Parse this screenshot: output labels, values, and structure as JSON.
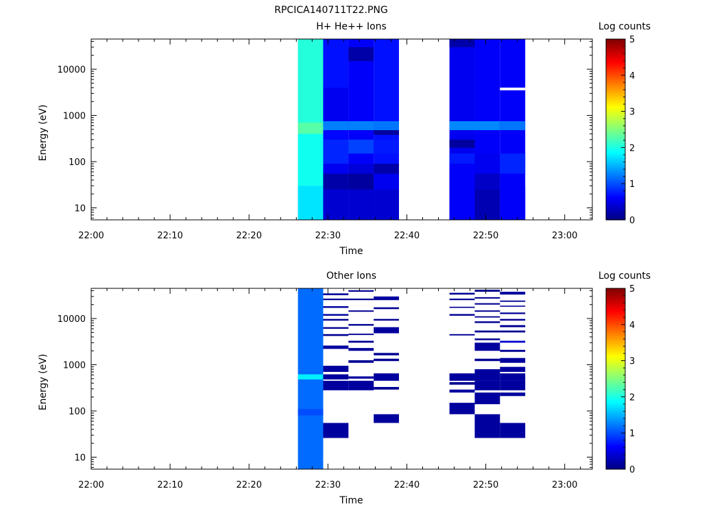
{
  "figure_title": "RPCICA140711T22.PNG",
  "colormap": [
    "#00007f",
    "#0000ff",
    "#007fff",
    "#00ffff",
    "#7fff7f",
    "#ffff00",
    "#ff7f00",
    "#ff0000",
    "#7f0000"
  ],
  "chart_data": [
    {
      "type": "heatmap",
      "title": "H+ He++ Ions",
      "xlabel": "Time",
      "ylabel": "Energy (eV)",
      "x_ticks": [
        "22:00",
        "22:10",
        "22:20",
        "22:30",
        "22:40",
        "22:50",
        "23:00"
      ],
      "x_range": [
        "22:00",
        "23:03.5"
      ],
      "y_ticks": [
        "10",
        "100",
        "1000",
        "10000"
      ],
      "y_range": [
        5.5,
        45000
      ],
      "y_scale": "log",
      "colorbar": {
        "label": "Log counts",
        "ticks": [
          "0",
          "1",
          "2",
          "3",
          "4",
          "5"
        ],
        "range": [
          0,
          5
        ]
      },
      "columns": [
        {
          "start": "22:26.2",
          "end": "22:29.4",
          "base": 2.0,
          "bands": [
            {
              "e": [
                5.5,
                30
              ],
              "v": 1.75
            },
            {
              "e": [
                30,
                400
              ],
              "v": 1.95
            },
            {
              "e": [
                400,
                700
              ],
              "v": 2.3
            },
            {
              "e": [
                700,
                45000
              ],
              "v": 2.05
            }
          ]
        },
        {
          "start": "22:29.4",
          "end": "22:32.6",
          "base": 0.65,
          "bands": [
            {
              "e": [
                5.5,
                25
              ],
              "v": 0.4
            },
            {
              "e": [
                25,
                55
              ],
              "v": 0.2
            },
            {
              "e": [
                55,
                90
              ],
              "v": 0.55
            },
            {
              "e": [
                90,
                300
              ],
              "v": 0.8
            },
            {
              "e": [
                480,
                750
              ],
              "v": 1.25
            },
            {
              "e": [
                750,
                4000
              ],
              "v": 0.55
            },
            {
              "e": [
                4000,
                45000
              ],
              "v": 0.7
            }
          ]
        },
        {
          "start": "22:32.6",
          "end": "22:35.8",
          "base": 0.6,
          "bands": [
            {
              "e": [
                5.5,
                25
              ],
              "v": 0.4
            },
            {
              "e": [
                25,
                55
              ],
              "v": 0.15
            },
            {
              "e": [
                55,
                90
              ],
              "v": 0.45
            },
            {
              "e": [
                150,
                300
              ],
              "v": 0.95
            },
            {
              "e": [
                480,
                750
              ],
              "v": 1.25
            },
            {
              "e": [
                15000,
                30000
              ],
              "v": 0.2
            }
          ]
        },
        {
          "start": "22:35.8",
          "end": "22:39.0",
          "base": 0.7,
          "bands": [
            {
              "e": [
                5.5,
                25
              ],
              "v": 0.4
            },
            {
              "e": [
                25,
                55
              ],
              "v": 0.55
            },
            {
              "e": [
                55,
                90
              ],
              "v": 0.2
            },
            {
              "e": [
                150,
                300
              ],
              "v": 0.75
            },
            {
              "e": [
                380,
                480
              ],
              "v": 0.15
            },
            {
              "e": [
                480,
                750
              ],
              "v": 1.2
            }
          ]
        },
        {
          "start": "22:45.4",
          "end": "22:48.6",
          "base": 0.55,
          "bands": [
            {
              "e": [
                5.5,
                90
              ],
              "v": 0.6
            },
            {
              "e": [
                90,
                150
              ],
              "v": 0.75
            },
            {
              "e": [
                200,
                300
              ],
              "v": 0.15
            },
            {
              "e": [
                480,
                750
              ],
              "v": 1.3
            },
            {
              "e": [
                30000,
                45000
              ],
              "v": 0.2
            }
          ]
        },
        {
          "start": "22:48.6",
          "end": "22:51.8",
          "base": 0.6,
          "bands": [
            {
              "e": [
                5.5,
                25
              ],
              "v": 0.25
            },
            {
              "e": [
                25,
                55
              ],
              "v": 0.35
            },
            {
              "e": [
                55,
                150
              ],
              "v": 0.55
            },
            {
              "e": [
                480,
                750
              ],
              "v": 1.3
            }
          ]
        },
        {
          "start": "22:51.8",
          "end": "22:55.0",
          "base": 0.6,
          "bands": [
            {
              "e": [
                5.5,
                30
              ],
              "v": 0.6
            },
            {
              "e": [
                55,
                150
              ],
              "v": 0.8
            },
            {
              "e": [
                480,
                750
              ],
              "v": 1.2
            },
            {
              "e": [
                3500,
                4000
              ],
              "v": -1
            }
          ]
        }
      ]
    },
    {
      "type": "heatmap",
      "title": "Other Ions",
      "xlabel": "Time",
      "ylabel": "Energy (eV)",
      "x_ticks": [
        "22:00",
        "22:10",
        "22:20",
        "22:30",
        "22:40",
        "22:50",
        "23:00"
      ],
      "x_range": [
        "22:00",
        "23:03.5"
      ],
      "y_ticks": [
        "10",
        "100",
        "1000",
        "10000"
      ],
      "y_range": [
        5.5,
        45000
      ],
      "y_scale": "log",
      "colorbar": {
        "label": "Log counts",
        "ticks": [
          "0",
          "1",
          "2",
          "3",
          "4",
          "5"
        ],
        "range": [
          0,
          5
        ]
      },
      "columns": [
        {
          "start": "22:26.2",
          "end": "22:29.4",
          "base": 1.15,
          "bands": [
            {
              "e": [
                480,
                620
              ],
              "v": 1.8
            },
            {
              "e": [
                80,
                110
              ],
              "v": 1.0
            }
          ]
        },
        {
          "start": "22:29.4",
          "end": "22:32.6",
          "base": null,
          "bands": [
            {
              "e": [
                26,
                55
              ],
              "v": 0.15
            },
            {
              "e": [
                280,
                450
              ],
              "v": 0.15
            },
            {
              "e": [
                480,
                620
              ],
              "v": 0.15
            },
            {
              "e": [
                700,
                950
              ],
              "v": 0.15
            },
            {
              "e": [
                2200,
                2600
              ],
              "v": 0.15
            },
            {
              "e": [
                4200,
                4600
              ],
              "v": 0.1
            },
            {
              "e": [
                6000,
                6500
              ],
              "v": 0.1
            },
            {
              "e": [
                9000,
                9800
              ],
              "v": 0.1
            },
            {
              "e": [
                11500,
                12500
              ],
              "v": 0.15
            },
            {
              "e": [
                17000,
                18500
              ],
              "v": 0.15
            },
            {
              "e": [
                25000,
                27000
              ],
              "v": 0.1
            },
            {
              "e": [
                32000,
                35000
              ],
              "v": 0.15
            }
          ]
        },
        {
          "start": "22:32.6",
          "end": "22:35.8",
          "base": null,
          "bands": [
            {
              "e": [
                280,
                450
              ],
              "v": 0.15
            },
            {
              "e": [
                500,
                560
              ],
              "v": 0.15
            },
            {
              "e": [
                1100,
                1250
              ],
              "v": 0.1
            },
            {
              "e": [
                2000,
                2300
              ],
              "v": 0.15
            },
            {
              "e": [
                3000,
                3300
              ],
              "v": 0.1
            },
            {
              "e": [
                4400,
                4700
              ],
              "v": 0.1
            },
            {
              "e": [
                7000,
                7600
              ],
              "v": 0.1
            },
            {
              "e": [
                14000,
                15000
              ],
              "v": 0.1
            },
            {
              "e": [
                25000,
                27000
              ],
              "v": 0.1
            },
            {
              "e": [
                38000,
                41000
              ],
              "v": 0.1
            }
          ]
        },
        {
          "start": "22:35.8",
          "end": "22:39.0",
          "base": null,
          "bands": [
            {
              "e": [
                55,
                85
              ],
              "v": 0.15
            },
            {
              "e": [
                290,
                330
              ],
              "v": 0.1
            },
            {
              "e": [
                450,
                650
              ],
              "v": 0.15
            },
            {
              "e": [
                1200,
                1350
              ],
              "v": 0.1
            },
            {
              "e": [
                1600,
                1800
              ],
              "v": 0.1
            },
            {
              "e": [
                4800,
                6500
              ],
              "v": 0.15
            },
            {
              "e": [
                9000,
                9800
              ],
              "v": 0.1
            },
            {
              "e": [
                16000,
                17500
              ],
              "v": 0.1
            },
            {
              "e": [
                25000,
                30000
              ],
              "v": 0.15
            }
          ]
        },
        {
          "start": "22:45.4",
          "end": "22:48.6",
          "base": null,
          "bands": [
            {
              "e": [
                85,
                150
              ],
              "v": 0.15
            },
            {
              "e": [
                250,
                290
              ],
              "v": 0.15
            },
            {
              "e": [
                370,
                420
              ],
              "v": 0.1
            },
            {
              "e": [
                450,
                650
              ],
              "v": 0.15
            },
            {
              "e": [
                4300,
                4600
              ],
              "v": 0.1
            },
            {
              "e": [
                11500,
                12500
              ],
              "v": 0.1
            },
            {
              "e": [
                17000,
                18000
              ],
              "v": 0.1
            },
            {
              "e": [
                25000,
                27000
              ],
              "v": 0.1
            },
            {
              "e": [
                33000,
                36000
              ],
              "v": 0.1
            }
          ]
        },
        {
          "start": "22:48.6",
          "end": "22:51.8",
          "base": null,
          "bands": [
            {
              "e": [
                26,
                85
              ],
              "v": 0.15
            },
            {
              "e": [
                140,
                250
              ],
              "v": 0.15
            },
            {
              "e": [
                280,
                450
              ],
              "v": 0.15
            },
            {
              "e": [
                450,
                800
              ],
              "v": 0.15
            },
            {
              "e": [
                1200,
                1350
              ],
              "v": 0.1
            },
            {
              "e": [
                2000,
                3000
              ],
              "v": 0.15
            },
            {
              "e": [
                3400,
                3700
              ],
              "v": 0.1
            },
            {
              "e": [
                5000,
                5500
              ],
              "v": 0.1
            },
            {
              "e": [
                8000,
                8700
              ],
              "v": 0.1
            },
            {
              "e": [
                10500,
                11200
              ],
              "v": 0.1
            },
            {
              "e": [
                14000,
                15000
              ],
              "v": 0.1
            },
            {
              "e": [
                20000,
                21500
              ],
              "v": 0.1
            },
            {
              "e": [
                27000,
                29000
              ],
              "v": 0.1
            },
            {
              "e": [
                38000,
                42000
              ],
              "v": 0.1
            }
          ]
        },
        {
          "start": "22:51.8",
          "end": "22:55.0",
          "base": null,
          "bands": [
            {
              "e": [
                26,
                55
              ],
              "v": 0.15
            },
            {
              "e": [
                210,
                250
              ],
              "v": 0.15
            },
            {
              "e": [
                280,
                450
              ],
              "v": 0.15
            },
            {
              "e": [
                450,
                650
              ],
              "v": 0.15
            },
            {
              "e": [
                700,
                900
              ],
              "v": 0.15
            },
            {
              "e": [
                1100,
                1400
              ],
              "v": 0.15
            },
            {
              "e": [
                1900,
                2100
              ],
              "v": 0.1
            },
            {
              "e": [
                3000,
                3300
              ],
              "v": 0.4
            },
            {
              "e": [
                5000,
                5500
              ],
              "v": 0.1
            },
            {
              "e": [
                6500,
                7200
              ],
              "v": 0.1
            },
            {
              "e": [
                9000,
                9800
              ],
              "v": 0.1
            },
            {
              "e": [
                12500,
                13500
              ],
              "v": 0.1
            },
            {
              "e": [
                18000,
                19000
              ],
              "v": 0.1
            },
            {
              "e": [
                23000,
                24500
              ],
              "v": 0.1
            },
            {
              "e": [
                33000,
                38000
              ],
              "v": 0.15
            }
          ]
        }
      ]
    }
  ]
}
